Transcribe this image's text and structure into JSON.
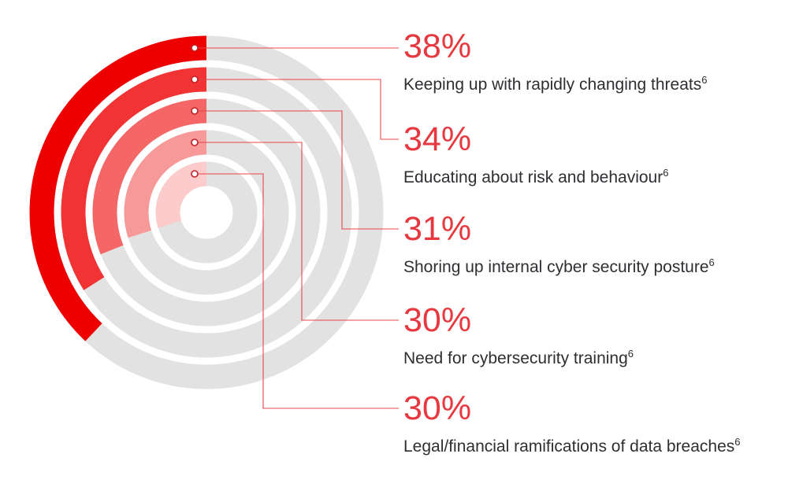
{
  "chart_data": {
    "type": "radial-bar",
    "title": "",
    "unit": "%",
    "start_angle": "top",
    "direction": "counterclockwise",
    "value_scale": "percent-of-full-circle",
    "items": [
      {
        "value": 38,
        "value_label": "38%",
        "label": "Keeping up with rapidly changing threats",
        "footnote": "6"
      },
      {
        "value": 34,
        "value_label": "34%",
        "label": "Educating about risk and behaviour",
        "footnote": "6"
      },
      {
        "value": 31,
        "value_label": "31%",
        "label": "Shoring up internal cyber security posture",
        "footnote": "6"
      },
      {
        "value": 30,
        "value_label": "30%",
        "label": "Need for cybersecurity training",
        "footnote": "6"
      },
      {
        "value": 30,
        "value_label": "30%",
        "label": "Legal/financial ramifications of data breaches",
        "footnote": "6"
      }
    ],
    "colors": {
      "ring_fills": [
        "#ee0000",
        "#f13333",
        "#f56666",
        "#f89999",
        "#fccccc"
      ],
      "track": "#e2e2e2",
      "percent_text": "#e8383f",
      "label_text": "#2e2e33",
      "leader_line": "#e5474e",
      "dot_stroke": "#c32026",
      "dot_fill": "#ffffff",
      "background": "#ffffff"
    },
    "legend_position": "right"
  }
}
